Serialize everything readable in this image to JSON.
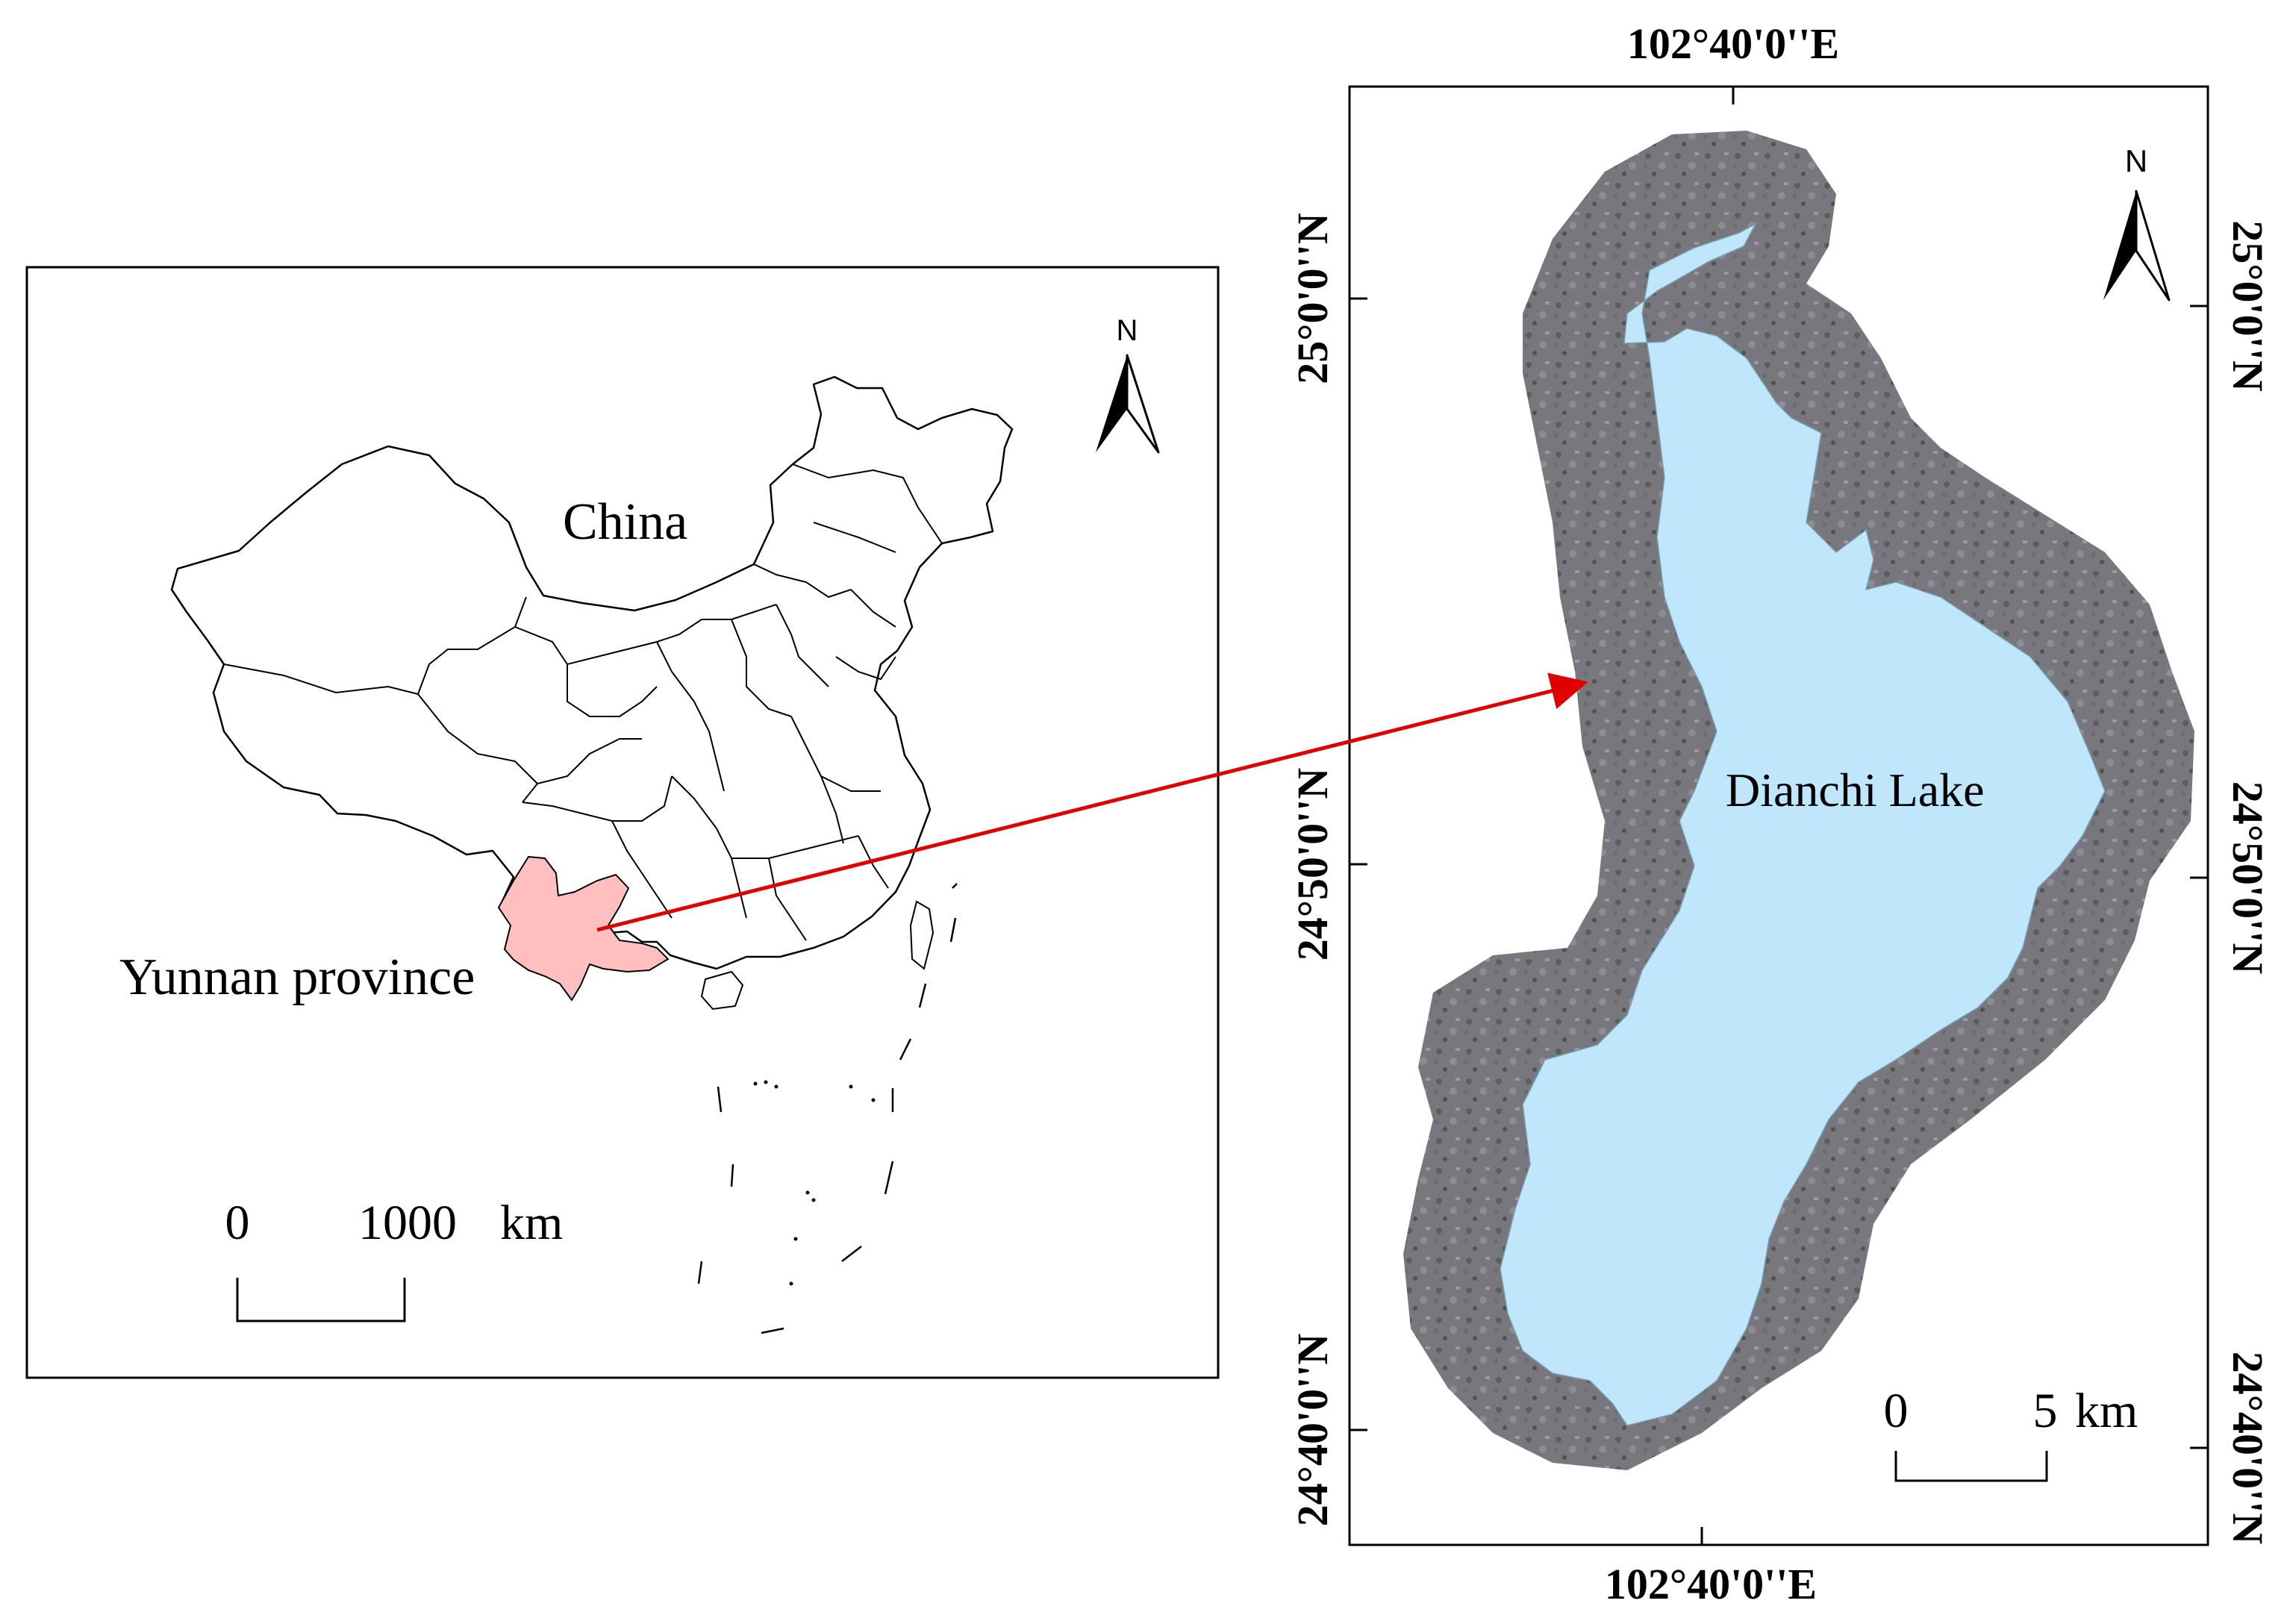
{
  "china_map": {
    "country_label": "China",
    "province_label": "Yunnan province",
    "north_label": "N",
    "scale_zero": "0",
    "scale_value": "1000",
    "scale_unit": "km",
    "highlight_color": "#ffbfbf"
  },
  "lake_map": {
    "lake_label": "Dianchi Lake",
    "north_label": "N",
    "scale_zero": "0",
    "scale_value": "5",
    "scale_unit": "km",
    "lon_label_top": "102°40'0''E",
    "lon_label_bottom": "102°40'0''E",
    "lat_labels": [
      "25°0'0''N",
      "24°50'0''N",
      "24°40'0''N"
    ],
    "lake_color": "#bfe6fb"
  },
  "arrow_color": "#e00000"
}
